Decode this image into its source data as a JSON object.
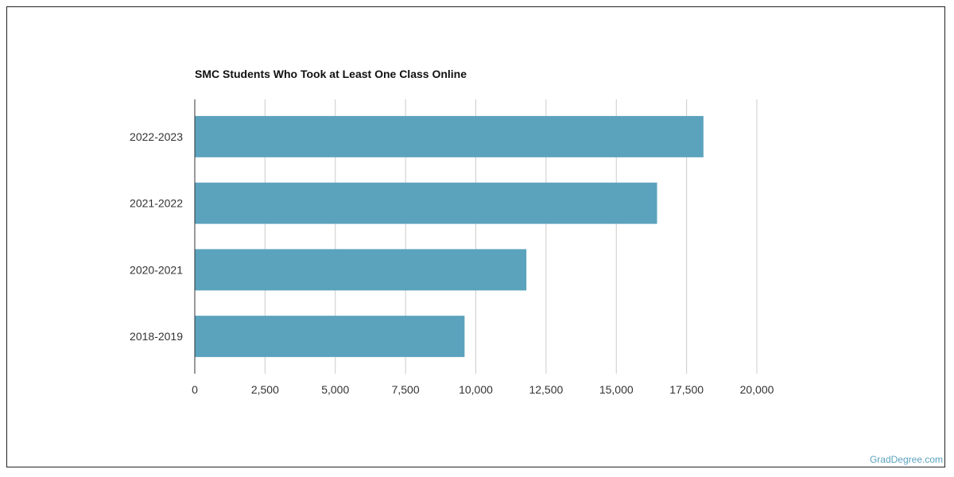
{
  "watermark": "GradDegree.com",
  "colors": {
    "bar": "#5ba2bd",
    "grid": "#cccccc",
    "axis": "#333333"
  },
  "chart_data": {
    "type": "bar",
    "orientation": "horizontal",
    "title": "SMC Students Who Took at Least One Class Online",
    "xlabel": "",
    "ylabel": "",
    "categories": [
      "2022-2023",
      "2021-2022",
      "2020-2021",
      "2018-2019"
    ],
    "values": [
      18100,
      16450,
      11800,
      9600
    ],
    "xlim": [
      0,
      20000
    ],
    "xticks": [
      0,
      2500,
      5000,
      7500,
      10000,
      12500,
      15000,
      17500,
      20000
    ],
    "xtick_labels": [
      "0",
      "2,500",
      "5,000",
      "7,500",
      "10,000",
      "12,500",
      "15,000",
      "17,500",
      "20,000"
    ],
    "grid": true
  }
}
